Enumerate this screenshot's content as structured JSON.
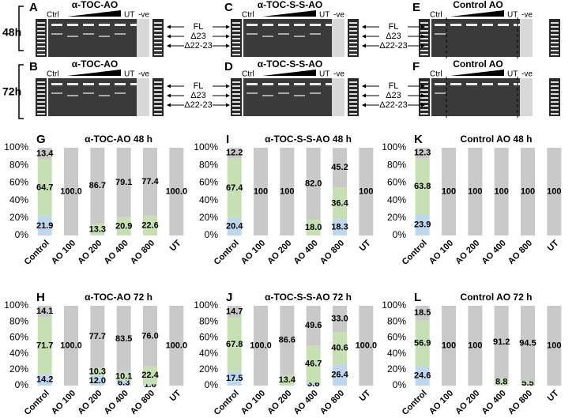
{
  "gels": {
    "row_labels": [
      "48h",
      "72h"
    ],
    "panels": [
      {
        "letter": "A",
        "title": "α-TOC-AO",
        "ctrl": "Ctrl",
        "ut": "UT",
        "neg": "-ve"
      },
      {
        "letter": "B",
        "title": "α-TOC-AO",
        "ctrl": "Ctrl",
        "ut": "UT",
        "neg": "-ve"
      },
      {
        "letter": "C",
        "title": "α-TOC-S-S-AO",
        "ctrl": "Ctrl",
        "ut": "UT",
        "neg": "-ve"
      },
      {
        "letter": "D",
        "title": "α-TOC-S-S-AO",
        "ctrl": "Ctrl",
        "ut": "UT",
        "neg": "-ve"
      },
      {
        "letter": "E",
        "title": "Control AO",
        "ctrl": "Ctrl",
        "ut": "UT",
        "neg": "-ve"
      },
      {
        "letter": "F",
        "title": "Control AO",
        "ctrl": "Ctrl",
        "ut": "UT",
        "neg": "-ve"
      }
    ],
    "bands": [
      [
        "FL",
        "Δ23",
        "Δ22-23"
      ],
      [
        "FL",
        "Δ23",
        "Δ22-23"
      ],
      [
        "FL",
        "Δ23",
        "Δ22-23"
      ],
      [
        "FL",
        "Δ23",
        "Δ22-23"
      ]
    ]
  },
  "chart_data": [
    {
      "type": "bar",
      "stacked": true,
      "panel_label": "G",
      "title": "α-TOC-AO 48 h",
      "categories": [
        "Control",
        "AO 100",
        "AO 200",
        "AO 400",
        "AO 800",
        "UT"
      ],
      "series": [
        {
          "color": "#bdd7ee",
          "values": [
            21.9,
            null,
            null,
            null,
            null,
            null
          ],
          "value_labels": [
            "21.9",
            null,
            null,
            null,
            null,
            null
          ]
        },
        {
          "color": "#c6e0b4",
          "values": [
            64.7,
            null,
            13.3,
            20.9,
            22.6,
            null
          ],
          "value_labels": [
            "64.7",
            null,
            "13.3",
            "20.9",
            "22.6",
            null
          ]
        },
        {
          "color": "#c9c9c9",
          "values": [
            13.4,
            100,
            86.7,
            79.1,
            77.4,
            100
          ],
          "value_labels": [
            "13.4",
            "100.0",
            "86.7",
            "79.1",
            "77.4",
            "100.0"
          ]
        }
      ],
      "ylim": [
        0,
        100
      ],
      "yticks": [
        {
          "value": 0,
          "label": "0%"
        },
        {
          "value": 20,
          "label": "20%"
        },
        {
          "value": 40,
          "label": "40%"
        },
        {
          "value": 60,
          "label": "60%"
        },
        {
          "value": 80,
          "label": "80%"
        },
        {
          "value": 100,
          "label": "100%"
        }
      ]
    },
    {
      "type": "bar",
      "stacked": true,
      "panel_label": "I",
      "title": "α-TOC-S-S-AO 48 h",
      "categories": [
        "Control",
        "AO 100",
        "AO 200",
        "AO 400",
        "AO 800",
        "UT"
      ],
      "series": [
        {
          "color": "#bdd7ee",
          "values": [
            20.4,
            null,
            null,
            null,
            18.3,
            null
          ],
          "value_labels": [
            "20.4",
            null,
            null,
            null,
            "18.3",
            null
          ]
        },
        {
          "color": "#c6e0b4",
          "values": [
            67.4,
            null,
            null,
            18.0,
            36.4,
            null
          ],
          "value_labels": [
            "67.4",
            null,
            null,
            "18.0",
            "36.4",
            null
          ]
        },
        {
          "color": "#c9c9c9",
          "values": [
            12.2,
            100,
            100,
            82.0,
            45.2,
            100
          ],
          "value_labels": [
            "12.2",
            "100",
            "100",
            "82.0",
            "45.2",
            "100"
          ]
        }
      ],
      "ylim": [
        0,
        100
      ],
      "yticks": [
        {
          "value": 0,
          "label": "0%"
        },
        {
          "value": 20,
          "label": "20%"
        },
        {
          "value": 40,
          "label": "40%"
        },
        {
          "value": 60,
          "label": "60%"
        },
        {
          "value": 80,
          "label": "80%"
        },
        {
          "value": 100,
          "label": "100%"
        }
      ]
    },
    {
      "type": "bar",
      "stacked": true,
      "panel_label": "K",
      "title": "Control AO 48 h",
      "categories": [
        "Control",
        "AO 100",
        "AO 200",
        "AO 400",
        "AO 800",
        "UT"
      ],
      "series": [
        {
          "color": "#bdd7ee",
          "values": [
            23.9,
            null,
            null,
            null,
            null,
            null
          ],
          "value_labels": [
            "23.9",
            null,
            null,
            null,
            null,
            null
          ]
        },
        {
          "color": "#c6e0b4",
          "values": [
            63.8,
            null,
            null,
            null,
            null,
            null
          ],
          "value_labels": [
            "63.8",
            null,
            null,
            null,
            null,
            null
          ]
        },
        {
          "color": "#c9c9c9",
          "values": [
            12.3,
            100,
            100,
            100,
            100,
            100
          ],
          "value_labels": [
            "12.3",
            "100",
            "100",
            "100",
            "100",
            "100"
          ]
        }
      ],
      "ylim": [
        0,
        100
      ],
      "yticks": [
        {
          "value": 0,
          "label": "0%"
        },
        {
          "value": 20,
          "label": "20%"
        },
        {
          "value": 40,
          "label": "40%"
        },
        {
          "value": 60,
          "label": "60%"
        },
        {
          "value": 80,
          "label": "80%"
        },
        {
          "value": 100,
          "label": "100%"
        }
      ]
    },
    {
      "type": "bar",
      "stacked": true,
      "panel_label": "H",
      "title": "α-TOC-AO 72 h",
      "categories": [
        "Control",
        "AO 100",
        "AO 200",
        "AO 400",
        "AO 800",
        "UT"
      ],
      "series": [
        {
          "color": "#bdd7ee",
          "values": [
            14.2,
            null,
            12.0,
            6.3,
            1.6,
            null
          ],
          "value_labels": [
            "14.2",
            null,
            "12.0",
            "6.3",
            "1.6",
            null
          ]
        },
        {
          "color": "#c6e0b4",
          "values": [
            71.7,
            null,
            10.3,
            10.1,
            22.4,
            null
          ],
          "value_labels": [
            "71.7",
            null,
            "10.3",
            "10.1",
            "22.4",
            null
          ]
        },
        {
          "color": "#c9c9c9",
          "values": [
            14.1,
            100,
            77.7,
            83.5,
            76.0,
            100
          ],
          "value_labels": [
            "14.1",
            "100.0",
            "77.7",
            "83.5",
            "76.0",
            "100.0"
          ]
        }
      ],
      "ylim": [
        0,
        100
      ],
      "yticks": [
        {
          "value": 0,
          "label": "0%"
        },
        {
          "value": 20,
          "label": "20%"
        },
        {
          "value": 40,
          "label": "40%"
        },
        {
          "value": 60,
          "label": "60%"
        },
        {
          "value": 80,
          "label": "80%"
        },
        {
          "value": 100,
          "label": "100%"
        }
      ]
    },
    {
      "type": "bar",
      "stacked": true,
      "panel_label": "J",
      "title": "α-TOC-S-S-AO 72 h",
      "categories": [
        "Control",
        "AO 100",
        "AO 200",
        "AO 400",
        "AO 800",
        "UT"
      ],
      "series": [
        {
          "color": "#bdd7ee",
          "values": [
            17.5,
            null,
            null,
            3.6,
            26.4,
            null
          ],
          "value_labels": [
            "17.5",
            null,
            null,
            "3.6",
            "26.4",
            null
          ]
        },
        {
          "color": "#c6e0b4",
          "values": [
            67.8,
            null,
            13.4,
            46.7,
            40.6,
            null
          ],
          "value_labels": [
            "67.8",
            null,
            "13.4",
            "46.7",
            "40.6",
            null
          ]
        },
        {
          "color": "#c9c9c9",
          "values": [
            14.7,
            100,
            86.6,
            49.6,
            33.0,
            100
          ],
          "value_labels": [
            "14.7",
            "100.0",
            "86.6",
            "49.6",
            "33.0",
            "100.0"
          ]
        }
      ],
      "ylim": [
        0,
        100
      ],
      "yticks": [
        {
          "value": 0,
          "label": "0%"
        },
        {
          "value": 20,
          "label": "20%"
        },
        {
          "value": 40,
          "label": "40%"
        },
        {
          "value": 60,
          "label": "60%"
        },
        {
          "value": 80,
          "label": "80%"
        },
        {
          "value": 100,
          "label": "100%"
        }
      ]
    },
    {
      "type": "bar",
      "stacked": true,
      "panel_label": "L",
      "title": "Control AO 72 h",
      "categories": [
        "Control",
        "AO 100",
        "AO 200",
        "AO 400",
        "AO 800",
        "UT"
      ],
      "series": [
        {
          "color": "#bdd7ee",
          "values": [
            24.6,
            null,
            null,
            null,
            null,
            null
          ],
          "value_labels": [
            "24.6",
            null,
            null,
            null,
            null,
            null
          ]
        },
        {
          "color": "#c6e0b4",
          "values": [
            56.9,
            null,
            null,
            8.8,
            5.5,
            null
          ],
          "value_labels": [
            "56.9",
            null,
            null,
            "8.8",
            "5.5",
            null
          ]
        },
        {
          "color": "#c9c9c9",
          "values": [
            18.5,
            100,
            100,
            91.2,
            94.5,
            100
          ],
          "value_labels": [
            "18.5",
            "100",
            "100",
            "91.2",
            "94.5",
            "100"
          ]
        }
      ],
      "ylim": [
        0,
        100
      ],
      "yticks": [
        {
          "value": 0,
          "label": "0%"
        },
        {
          "value": 20,
          "label": "20%"
        },
        {
          "value": 40,
          "label": "40%"
        },
        {
          "value": 60,
          "label": "60%"
        },
        {
          "value": 80,
          "label": "80%"
        },
        {
          "value": 100,
          "label": "100%"
        }
      ]
    }
  ]
}
